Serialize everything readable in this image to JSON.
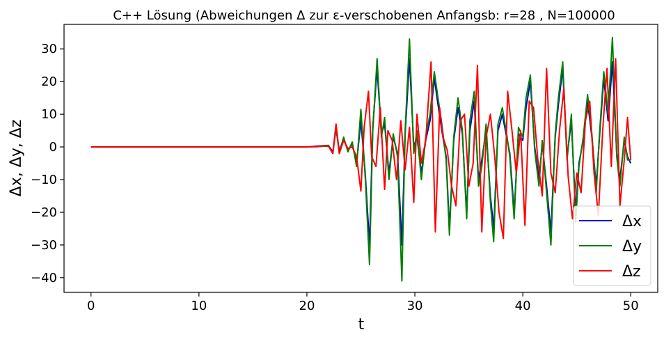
{
  "chart_data": {
    "type": "line",
    "title": "C++ Lösung (Abweichungen Δ zur ε-verschobenen Anfangsb: r=28 , N=100000",
    "xlabel": "t",
    "ylabel": "Δx, Δy, Δz",
    "xlim": [
      -2.5,
      52.5
    ],
    "ylim": [
      -44.5,
      37.5
    ],
    "xticks": [
      0,
      10,
      20,
      30,
      40,
      50
    ],
    "yticks": [
      -40,
      -30,
      -20,
      -10,
      0,
      10,
      20,
      30
    ],
    "grid": false,
    "legend_position": "lower-right",
    "series": [
      {
        "name": "Δx",
        "color": "#0000cc",
        "points": [
          [
            0,
            0
          ],
          [
            20,
            0
          ],
          [
            21,
            0.1
          ],
          [
            22,
            0.4
          ],
          [
            22.4,
            -1.5
          ],
          [
            22.7,
            5.5
          ],
          [
            23,
            -1.2
          ],
          [
            23.4,
            2.5
          ],
          [
            23.8,
            -1
          ],
          [
            24.2,
            1
          ],
          [
            24.6,
            -5
          ],
          [
            25,
            8
          ],
          [
            25.4,
            -8
          ],
          [
            25.8,
            -30
          ],
          [
            26.1,
            6
          ],
          [
            26.5,
            24
          ],
          [
            26.9,
            4
          ],
          [
            27.2,
            7
          ],
          [
            27.6,
            -8
          ],
          [
            28,
            3
          ],
          [
            28.4,
            -2
          ],
          [
            28.8,
            -30
          ],
          [
            29.1,
            4
          ],
          [
            29.5,
            27
          ],
          [
            29.9,
            0
          ],
          [
            30.2,
            3
          ],
          [
            30.6,
            -8
          ],
          [
            31,
            2
          ],
          [
            31.4,
            8
          ],
          [
            31.8,
            21
          ],
          [
            32.1,
            14
          ],
          [
            32.5,
            5
          ],
          [
            32.9,
            -3
          ],
          [
            33.2,
            -25
          ],
          [
            33.6,
            2
          ],
          [
            34,
            12
          ],
          [
            34.4,
            4
          ],
          [
            34.8,
            -20
          ],
          [
            35.1,
            5
          ],
          [
            35.5,
            14
          ],
          [
            35.9,
            -10
          ],
          [
            36.2,
            -4
          ],
          [
            36.6,
            5
          ],
          [
            37,
            -15
          ],
          [
            37.3,
            -25
          ],
          [
            37.7,
            5
          ],
          [
            38.1,
            10
          ],
          [
            38.5,
            3
          ],
          [
            38.8,
            -2
          ],
          [
            39.2,
            -20
          ],
          [
            39.6,
            4
          ],
          [
            40,
            2
          ],
          [
            40.3,
            12
          ],
          [
            40.7,
            20
          ],
          [
            41.1,
            0
          ],
          [
            41.5,
            -10
          ],
          [
            41.8,
            1
          ],
          [
            42.2,
            -12
          ],
          [
            42.6,
            -26
          ],
          [
            43,
            3
          ],
          [
            43.3,
            13
          ],
          [
            43.7,
            24
          ],
          [
            44.1,
            -3
          ],
          [
            44.5,
            8
          ],
          [
            44.9,
            -20
          ],
          [
            45.2,
            -5
          ],
          [
            45.6,
            2
          ],
          [
            46,
            14
          ],
          [
            46.4,
            3
          ],
          [
            46.8,
            -12
          ],
          [
            47.1,
            3
          ],
          [
            47.5,
            21
          ],
          [
            47.9,
            8
          ],
          [
            48.3,
            26
          ],
          [
            48.7,
            -2
          ],
          [
            49,
            -10
          ],
          [
            49.4,
            2
          ],
          [
            49.7,
            -3
          ],
          [
            50,
            -5
          ]
        ]
      },
      {
        "name": "Δy",
        "color": "#008000",
        "points": [
          [
            0,
            0
          ],
          [
            20,
            0
          ],
          [
            21,
            0.3
          ],
          [
            22,
            0.5
          ],
          [
            22.4,
            -2
          ],
          [
            22.7,
            6
          ],
          [
            23,
            -2
          ],
          [
            23.4,
            3
          ],
          [
            23.8,
            -1.5
          ],
          [
            24.2,
            1.5
          ],
          [
            24.6,
            -6
          ],
          [
            25,
            11.5
          ],
          [
            25.4,
            -9
          ],
          [
            25.8,
            -36
          ],
          [
            26.1,
            5
          ],
          [
            26.5,
            27
          ],
          [
            26.9,
            3
          ],
          [
            27.2,
            9
          ],
          [
            27.6,
            -10
          ],
          [
            28,
            4
          ],
          [
            28.4,
            -3
          ],
          [
            28.8,
            -41
          ],
          [
            29.1,
            5
          ],
          [
            29.5,
            33
          ],
          [
            29.9,
            -2
          ],
          [
            30.2,
            5
          ],
          [
            30.6,
            -10
          ],
          [
            31,
            3
          ],
          [
            31.4,
            10
          ],
          [
            31.8,
            23
          ],
          [
            32.1,
            16
          ],
          [
            32.5,
            7
          ],
          [
            32.9,
            -4
          ],
          [
            33.2,
            -27
          ],
          [
            33.6,
            3
          ],
          [
            34,
            15
          ],
          [
            34.4,
            5
          ],
          [
            34.8,
            -22
          ],
          [
            35.1,
            8
          ],
          [
            35.5,
            17
          ],
          [
            35.9,
            -12
          ],
          [
            36.2,
            -6
          ],
          [
            36.6,
            7
          ],
          [
            37,
            -17
          ],
          [
            37.3,
            -29
          ],
          [
            37.7,
            7
          ],
          [
            38.1,
            12
          ],
          [
            38.5,
            4
          ],
          [
            38.8,
            -3
          ],
          [
            39.2,
            -22
          ],
          [
            39.6,
            6
          ],
          [
            40,
            3
          ],
          [
            40.3,
            15
          ],
          [
            40.7,
            22
          ],
          [
            41.1,
            -1
          ],
          [
            41.5,
            -12
          ],
          [
            41.8,
            2
          ],
          [
            42.2,
            -14
          ],
          [
            42.6,
            -30
          ],
          [
            43,
            4
          ],
          [
            43.3,
            15
          ],
          [
            43.7,
            26
          ],
          [
            44.1,
            -4
          ],
          [
            44.5,
            10
          ],
          [
            44.9,
            -23
          ],
          [
            45.2,
            -6
          ],
          [
            45.6,
            3
          ],
          [
            46,
            16
          ],
          [
            46.4,
            4
          ],
          [
            46.8,
            -14
          ],
          [
            47.1,
            4
          ],
          [
            47.5,
            23
          ],
          [
            47.9,
            10
          ],
          [
            48.3,
            33.5
          ],
          [
            48.7,
            -3
          ],
          [
            49,
            -12
          ],
          [
            49.4,
            3
          ],
          [
            49.7,
            -4
          ],
          [
            50,
            -4
          ]
        ]
      },
      {
        "name": "Δz",
        "color": "#ff0000",
        "points": [
          [
            0,
            0
          ],
          [
            20,
            0
          ],
          [
            21,
            0.2
          ],
          [
            22,
            0.2
          ],
          [
            22.4,
            -2
          ],
          [
            22.7,
            7
          ],
          [
            23,
            -2
          ],
          [
            23.4,
            2
          ],
          [
            23.8,
            -0.5
          ],
          [
            24.2,
            0
          ],
          [
            24.6,
            -3
          ],
          [
            25,
            -13.5
          ],
          [
            25.3,
            6
          ],
          [
            25.7,
            17
          ],
          [
            26,
            -3
          ],
          [
            26.4,
            -6
          ],
          [
            26.8,
            12
          ],
          [
            27.2,
            -13
          ],
          [
            27.5,
            5
          ],
          [
            27.9,
            2
          ],
          [
            28.3,
            -10
          ],
          [
            28.7,
            8
          ],
          [
            29.1,
            -7
          ],
          [
            29.5,
            6
          ],
          [
            29.9,
            -17
          ],
          [
            30.2,
            10
          ],
          [
            30.6,
            -5
          ],
          [
            31,
            2
          ],
          [
            31.5,
            26
          ],
          [
            31.9,
            -26
          ],
          [
            32.3,
            12
          ],
          [
            32.6,
            3
          ],
          [
            33,
            -1
          ],
          [
            33.4,
            -12
          ],
          [
            33.8,
            -18
          ],
          [
            34.2,
            8
          ],
          [
            34.6,
            10
          ],
          [
            35,
            -12
          ],
          [
            35.4,
            -5
          ],
          [
            35.8,
            25
          ],
          [
            36.2,
            -26
          ],
          [
            36.6,
            3
          ],
          [
            37,
            10
          ],
          [
            37.4,
            -3
          ],
          [
            37.8,
            -20
          ],
          [
            38.2,
            -28
          ],
          [
            38.6,
            17
          ],
          [
            39,
            5
          ],
          [
            39.4,
            -8
          ],
          [
            39.8,
            5
          ],
          [
            40.2,
            -24
          ],
          [
            40.6,
            14
          ],
          [
            41,
            12
          ],
          [
            41.4,
            -4
          ],
          [
            41.8,
            -15
          ],
          [
            42.2,
            24
          ],
          [
            42.6,
            -8
          ],
          [
            43,
            -14
          ],
          [
            43.4,
            5
          ],
          [
            43.8,
            18
          ],
          [
            44.2,
            -9
          ],
          [
            44.6,
            -22
          ],
          [
            45,
            -8
          ],
          [
            45.4,
            -14
          ],
          [
            45.8,
            8
          ],
          [
            46.2,
            14
          ],
          [
            46.6,
            -8
          ],
          [
            47,
            -21
          ],
          [
            47.4,
            5
          ],
          [
            47.8,
            24
          ],
          [
            48.2,
            -6
          ],
          [
            48.6,
            27
          ],
          [
            49,
            -18
          ],
          [
            49.4,
            -4
          ],
          [
            49.7,
            9
          ],
          [
            50,
            -4
          ]
        ]
      }
    ]
  }
}
